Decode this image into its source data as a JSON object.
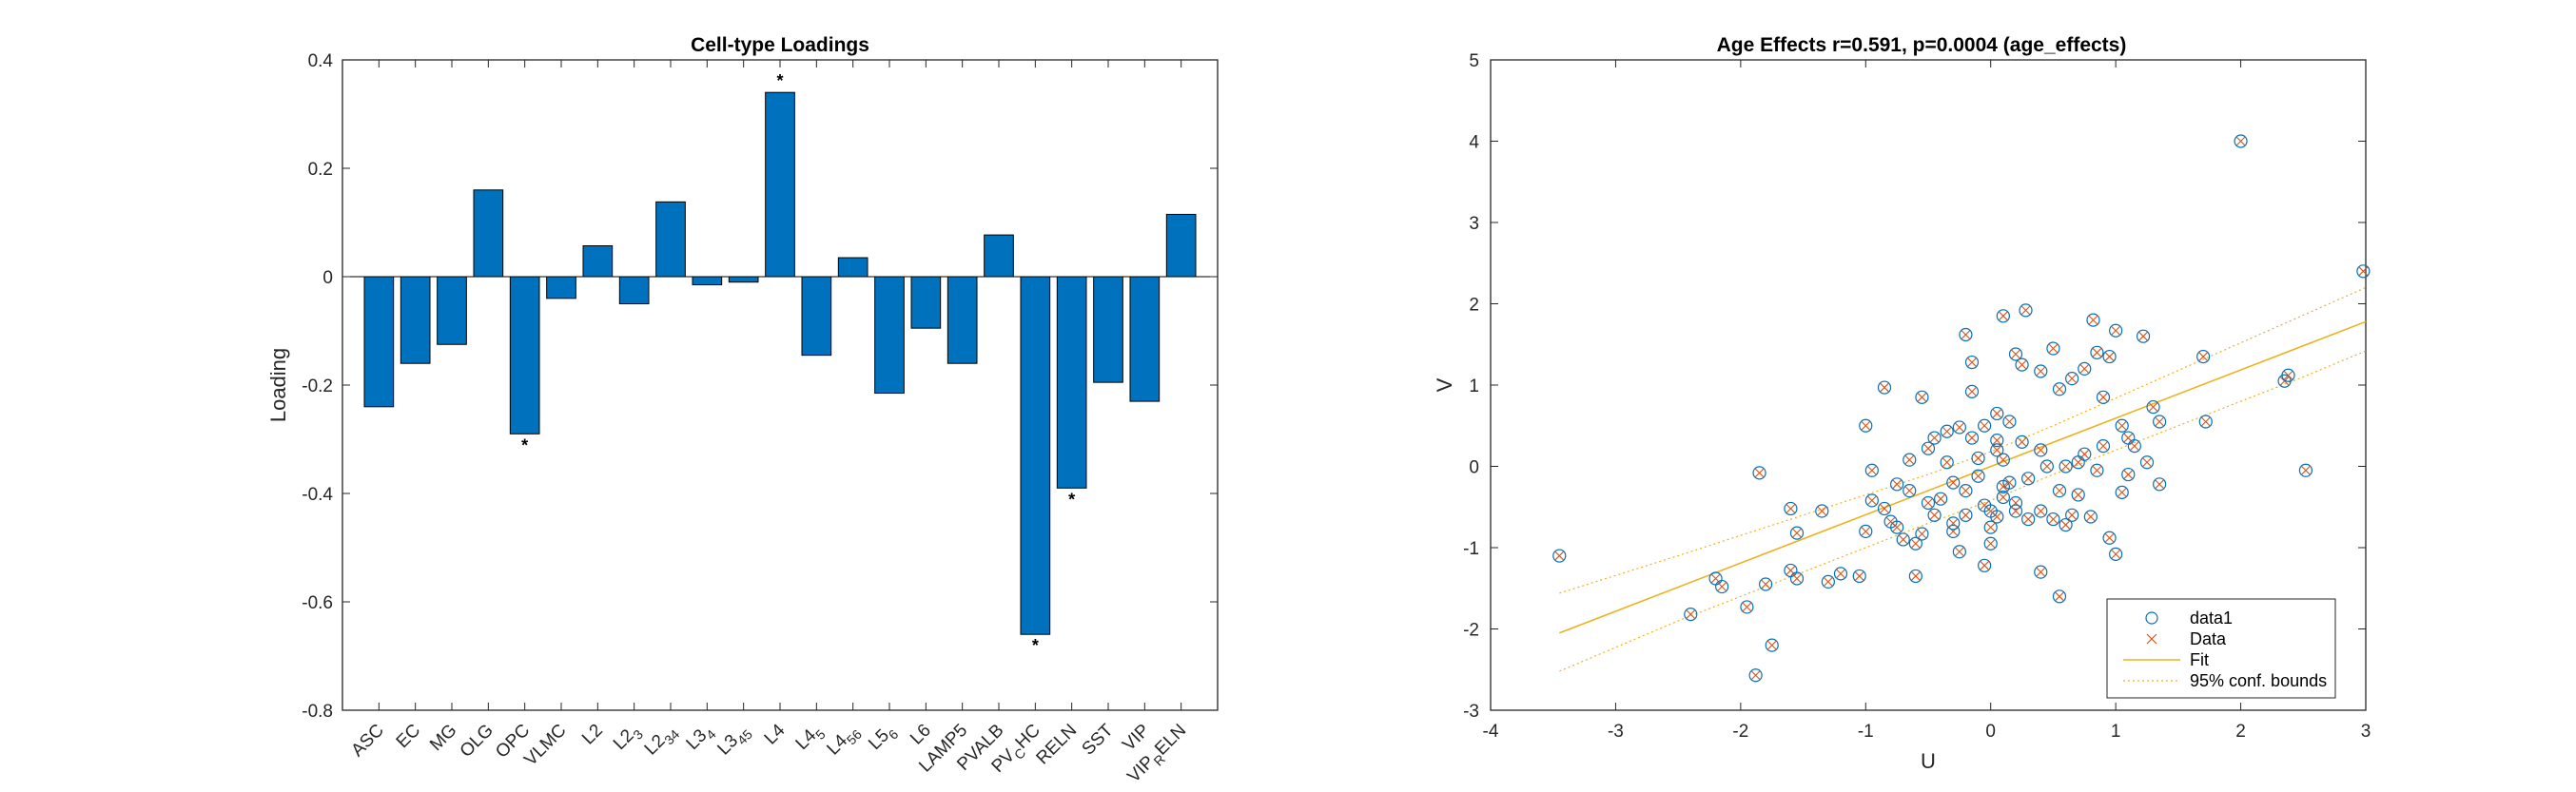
{
  "chart_data": [
    {
      "type": "bar",
      "title": "Cell-type Loadings",
      "xlabel": "",
      "ylabel": "Loading",
      "ylim": [
        -0.8,
        0.4
      ],
      "yticks": [
        0.4,
        0.2,
        0,
        -0.2,
        -0.4,
        -0.6,
        -0.8
      ],
      "ytick_labels": [
        "0.4",
        "0.2",
        "0",
        "-0.2",
        "-0.4",
        "-0.6",
        "-0.8"
      ],
      "bar_color": "#0072BD",
      "categories": [
        {
          "base": "ASC",
          "sub": ""
        },
        {
          "base": "EC",
          "sub": ""
        },
        {
          "base": "MG",
          "sub": ""
        },
        {
          "base": "OLG",
          "sub": ""
        },
        {
          "base": "OPC",
          "sub": ""
        },
        {
          "base": "VLMC",
          "sub": ""
        },
        {
          "base": "L2",
          "sub": ""
        },
        {
          "base": "L2",
          "sub": "3"
        },
        {
          "base": "L2",
          "sub": "34"
        },
        {
          "base": "L3",
          "sub": "4"
        },
        {
          "base": "L3",
          "sub": "45"
        },
        {
          "base": "L4",
          "sub": ""
        },
        {
          "base": "L4",
          "sub": "5"
        },
        {
          "base": "L4",
          "sub": "56"
        },
        {
          "base": "L5",
          "sub": "6"
        },
        {
          "base": "L6",
          "sub": ""
        },
        {
          "base": "LAMP5",
          "sub": ""
        },
        {
          "base": "PVALB",
          "sub": ""
        },
        {
          "base": "PV",
          "sub": "C",
          "rest": "HC"
        },
        {
          "base": "RELN",
          "sub": ""
        },
        {
          "base": "SST",
          "sub": ""
        },
        {
          "base": "VIP",
          "sub": ""
        },
        {
          "base": "VIP",
          "sub": "R",
          "rest": "ELN"
        }
      ],
      "values": [
        -0.24,
        -0.16,
        -0.125,
        0.16,
        -0.29,
        -0.04,
        0.057,
        -0.05,
        0.138,
        -0.015,
        -0.01,
        0.34,
        -0.145,
        0.035,
        -0.215,
        -0.095,
        -0.16,
        0.077,
        -0.66,
        -0.39,
        -0.195,
        -0.23,
        0.115
      ],
      "significant": [
        false,
        false,
        false,
        false,
        true,
        false,
        false,
        false,
        false,
        false,
        false,
        true,
        false,
        false,
        false,
        false,
        false,
        false,
        true,
        true,
        false,
        false,
        false
      ],
      "marker_text": "*"
    },
    {
      "type": "scatter",
      "title": "Age Effects r=0.591, p=0.0004 (age_effects)",
      "xlabel": "U",
      "ylabel": "V",
      "xlim": [
        -4,
        3
      ],
      "ylim": [
        -3,
        5
      ],
      "xticks": [
        -4,
        -3,
        -2,
        -1,
        0,
        1,
        2,
        3
      ],
      "xtick_labels": [
        "-4",
        "-3",
        "-2",
        "-1",
        "0",
        "1",
        "2",
        "3"
      ],
      "yticks": [
        5,
        4,
        3,
        2,
        1,
        0,
        -1,
        -2,
        -3
      ],
      "ytick_labels": [
        "5",
        "4",
        "3",
        "2",
        "1",
        "0",
        "-1",
        "-2",
        "-3"
      ],
      "legend_position": "bottom-right",
      "legend": [
        {
          "label": "data1",
          "marker": "circle",
          "color": "#0072BD"
        },
        {
          "label": "Data",
          "marker": "x",
          "color": "#D95319"
        },
        {
          "label": "Fit",
          "marker": "line",
          "color": "#EDB120"
        },
        {
          "label": "95% conf. bounds",
          "marker": "dotted",
          "color": "#EDB120"
        }
      ],
      "fit": {
        "x": [
          -3.45,
          3.0
        ],
        "y": [
          -2.05,
          1.78
        ]
      },
      "bounds_upper": {
        "x": [
          -3.45,
          -2.5,
          -1.5,
          -0.5,
          0.0,
          0.5,
          1.5,
          2.5,
          3.0
        ],
        "y": [
          -1.56,
          -1.1,
          -0.6,
          -0.1,
          0.18,
          0.5,
          1.18,
          1.86,
          2.2
        ]
      },
      "bounds_lower": {
        "x": [
          -3.45,
          -2.5,
          -1.5,
          -0.5,
          0.0,
          0.5,
          1.5,
          2.5,
          3.0
        ],
        "y": [
          -2.52,
          -1.9,
          -1.3,
          -0.7,
          -0.42,
          -0.1,
          0.5,
          1.1,
          1.42
        ]
      },
      "points": [
        [
          -3.45,
          -1.1
        ],
        [
          2.0,
          4.0
        ],
        [
          2.98,
          2.4
        ],
        [
          -1.88,
          -2.57
        ],
        [
          -1.75,
          -2.2
        ],
        [
          -2.4,
          -1.82
        ],
        [
          -2.2,
          -1.38
        ],
        [
          -2.15,
          -1.48
        ],
        [
          -1.95,
          -1.73
        ],
        [
          -1.8,
          -1.45
        ],
        [
          -1.6,
          -1.28
        ],
        [
          -1.55,
          -1.38
        ],
        [
          -1.3,
          -1.42
        ],
        [
          -1.05,
          -1.35
        ],
        [
          -0.6,
          -1.35
        ],
        [
          -1.85,
          -0.08
        ],
        [
          -1.6,
          -0.52
        ],
        [
          -1.55,
          -0.82
        ],
        [
          -1.35,
          -0.55
        ],
        [
          -1.2,
          -1.32
        ],
        [
          -1.0,
          -0.8
        ],
        [
          -0.95,
          -0.42
        ],
        [
          -0.8,
          -0.68
        ],
        [
          -0.75,
          -0.75
        ],
        [
          -0.6,
          -0.95
        ],
        [
          -0.55,
          -0.83
        ],
        [
          -0.45,
          -0.6
        ],
        [
          -0.4,
          -0.4
        ],
        [
          -0.3,
          -0.8
        ],
        [
          -0.2,
          -0.6
        ],
        [
          -1.0,
          0.5
        ],
        [
          -0.85,
          0.97
        ],
        [
          -0.55,
          0.85
        ],
        [
          -0.5,
          0.22
        ],
        [
          -0.45,
          0.35
        ],
        [
          -0.35,
          0.43
        ],
        [
          -0.25,
          0.48
        ],
        [
          -0.15,
          0.35
        ],
        [
          -0.15,
          0.92
        ],
        [
          -0.05,
          0.5
        ],
        [
          0.05,
          0.2
        ],
        [
          0.1,
          -0.38
        ],
        [
          0.05,
          -0.62
        ],
        [
          0.0,
          -0.75
        ],
        [
          -0.1,
          0.1
        ],
        [
          0.1,
          0.08
        ],
        [
          -0.2,
          -0.3
        ],
        [
          -0.3,
          -0.2
        ],
        [
          -0.35,
          0.05
        ],
        [
          -0.5,
          -0.45
        ],
        [
          -0.65,
          -0.3
        ],
        [
          -0.75,
          -0.22
        ],
        [
          -0.65,
          0.08
        ],
        [
          -0.95,
          -0.05
        ],
        [
          -0.85,
          -0.52
        ],
        [
          -0.05,
          -0.48
        ],
        [
          0.0,
          -0.55
        ],
        [
          -0.2,
          1.62
        ],
        [
          -0.15,
          1.28
        ],
        [
          0.1,
          1.85
        ],
        [
          0.2,
          1.38
        ],
        [
          0.28,
          1.92
        ],
        [
          0.4,
          1.17
        ],
        [
          0.5,
          1.45
        ],
        [
          0.55,
          0.95
        ],
        [
          0.65,
          1.08
        ],
        [
          0.75,
          1.2
        ],
        [
          0.82,
          1.8
        ],
        [
          0.85,
          1.4
        ],
        [
          0.95,
          1.35
        ],
        [
          1.0,
          1.67
        ],
        [
          1.05,
          0.5
        ],
        [
          1.1,
          0.35
        ],
        [
          1.15,
          0.25
        ],
        [
          1.22,
          1.6
        ],
        [
          1.3,
          0.73
        ],
        [
          1.35,
          0.55
        ],
        [
          1.7,
          1.35
        ],
        [
          1.72,
          0.55
        ],
        [
          2.35,
          1.05
        ],
        [
          2.38,
          1.12
        ],
        [
          2.52,
          -0.05
        ],
        [
          0.15,
          0.55
        ],
        [
          0.25,
          0.3
        ],
        [
          0.3,
          -0.15
        ],
        [
          0.4,
          0.2
        ],
        [
          0.45,
          0.0
        ],
        [
          0.55,
          -0.3
        ],
        [
          0.6,
          0.0
        ],
        [
          0.65,
          -0.6
        ],
        [
          0.7,
          -0.35
        ],
        [
          0.75,
          0.15
        ],
        [
          0.8,
          -0.62
        ],
        [
          0.9,
          0.25
        ],
        [
          0.95,
          -0.88
        ],
        [
          1.0,
          -1.08
        ],
        [
          1.05,
          -0.32
        ],
        [
          0.6,
          -0.72
        ],
        [
          0.4,
          -0.55
        ],
        [
          0.3,
          -0.65
        ],
        [
          0.2,
          -0.45
        ],
        [
          0.15,
          -0.2
        ],
        [
          0.1,
          -0.25
        ],
        [
          0.0,
          -0.95
        ],
        [
          -0.05,
          -1.22
        ],
        [
          0.5,
          -0.65
        ],
        [
          0.55,
          -1.6
        ],
        [
          0.4,
          -1.3
        ],
        [
          0.2,
          -0.55
        ],
        [
          -0.1,
          -0.12
        ],
        [
          -0.25,
          -1.05
        ],
        [
          0.05,
          0.32
        ],
        [
          0.7,
          0.05
        ],
        [
          0.85,
          -0.05
        ],
        [
          0.9,
          0.85
        ],
        [
          1.1,
          -0.1
        ],
        [
          1.25,
          0.05
        ],
        [
          1.35,
          -0.22
        ],
        [
          0.25,
          1.25
        ],
        [
          0.05,
          0.65
        ],
        [
          -0.3,
          -0.7
        ],
        [
          -0.7,
          -0.9
        ]
      ]
    }
  ]
}
